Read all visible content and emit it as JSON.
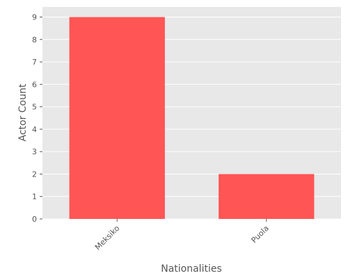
{
  "chart_data": {
    "type": "bar",
    "title": "",
    "xlabel": "Nationalities",
    "ylabel": "Actor Count",
    "categories": [
      "Meksiko",
      "Puola"
    ],
    "values": [
      9,
      2
    ],
    "ylim": [
      0,
      9.45
    ],
    "yticks": [
      0,
      1,
      2,
      3,
      4,
      5,
      6,
      7,
      8,
      9
    ],
    "grid": true,
    "legend": "none",
    "colors": {
      "bar": "#ff5555",
      "panel": "#e8e8e8",
      "grid": "#ffffff",
      "text": "#555555"
    }
  }
}
